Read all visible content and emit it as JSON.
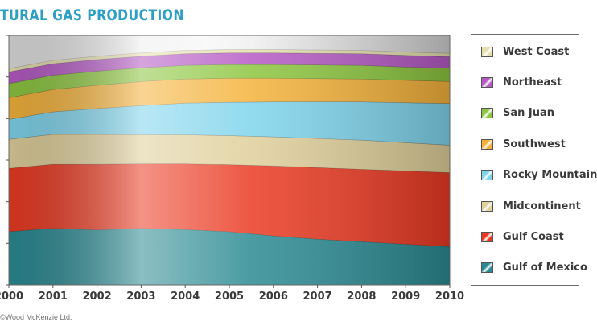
{
  "title": "TURAL GAS PRODUCTION",
  "credit": "©Wood McKenzie Ltd.",
  "colors": {
    "Gulf of Mexico": "#2a8a92",
    "Gulf Coast": "#ea3a22",
    "Midcontinent": "#dfcf9a",
    "Rocky Mountain": "#7fd4ec",
    "Southwest": "#f4b23a",
    "San Juan": "#8cc63f",
    "Northeast": "#b55ac4",
    "West Coast": "#e6dfb0"
  },
  "chart_data": {
    "type": "area",
    "stacked": true,
    "title": "TURAL GAS PRODUCTION",
    "xlabel": "",
    "ylabel": "",
    "x": [
      2000,
      2001,
      2002,
      2003,
      2004,
      2005,
      2006,
      2007,
      2008,
      2009,
      2010
    ],
    "ylim": [
      0,
      6
    ],
    "grid": false,
    "legend_position": "right",
    "series": [
      {
        "name": "Gulf of Mexico",
        "values": [
          1.28,
          1.36,
          1.32,
          1.36,
          1.33,
          1.28,
          1.18,
          1.1,
          1.04,
          0.98,
          0.92
        ]
      },
      {
        "name": "Gulf Coast",
        "values": [
          1.52,
          1.54,
          1.58,
          1.55,
          1.58,
          1.61,
          1.68,
          1.72,
          1.74,
          1.76,
          1.78
        ]
      },
      {
        "name": "Midcontinent",
        "values": [
          0.7,
          0.72,
          0.72,
          0.7,
          0.7,
          0.7,
          0.7,
          0.7,
          0.7,
          0.68,
          0.66
        ]
      },
      {
        "name": "Rocky Mountain",
        "values": [
          0.48,
          0.54,
          0.62,
          0.7,
          0.76,
          0.8,
          0.84,
          0.88,
          0.92,
          0.96,
          1.0
        ]
      },
      {
        "name": "Southwest",
        "values": [
          0.52,
          0.54,
          0.56,
          0.58,
          0.58,
          0.58,
          0.57,
          0.56,
          0.55,
          0.54,
          0.53
        ]
      },
      {
        "name": "San Juan",
        "values": [
          0.34,
          0.34,
          0.34,
          0.33,
          0.33,
          0.33,
          0.33,
          0.33,
          0.33,
          0.32,
          0.32
        ]
      },
      {
        "name": "Northeast",
        "values": [
          0.28,
          0.28,
          0.28,
          0.28,
          0.28,
          0.28,
          0.28,
          0.28,
          0.28,
          0.28,
          0.28
        ]
      },
      {
        "name": "West Coast",
        "values": [
          0.08,
          0.08,
          0.08,
          0.08,
          0.08,
          0.08,
          0.08,
          0.08,
          0.08,
          0.08,
          0.08
        ]
      }
    ],
    "legend_labels": [
      "West Coast",
      "Northeast",
      "San Juan",
      "Southwest",
      "Rocky Mountain",
      "Midcontinent",
      "Gulf Coast",
      "Gulf of Mexico"
    ]
  }
}
